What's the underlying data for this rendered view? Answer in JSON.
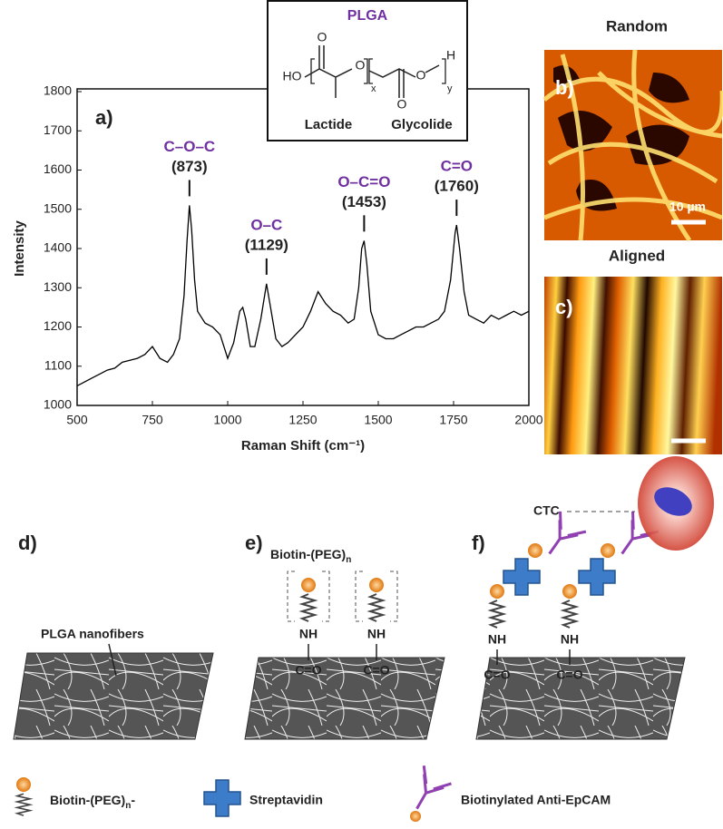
{
  "chart_data": {
    "type": "line",
    "tag": "a)",
    "xlabel": "Raman Shift (cm⁻¹)",
    "ylabel": "Intensity",
    "color": "#000000",
    "annotation_color": "#7030a0",
    "xlim": [
      500,
      2000
    ],
    "xticks": [
      500,
      750,
      1000,
      1250,
      1500,
      1750,
      2000
    ],
    "ylim": [
      1000,
      1800
    ],
    "yticks": [
      1000,
      1100,
      1200,
      1300,
      1400,
      1500,
      1600,
      1700,
      1800
    ],
    "x": [
      500,
      525,
      550,
      575,
      600,
      625,
      650,
      675,
      700,
      725,
      750,
      775,
      800,
      820,
      840,
      855,
      865,
      873,
      880,
      890,
      900,
      925,
      950,
      975,
      1000,
      1020,
      1040,
      1050,
      1060,
      1075,
      1090,
      1110,
      1129,
      1140,
      1160,
      1180,
      1200,
      1225,
      1250,
      1275,
      1300,
      1325,
      1350,
      1375,
      1400,
      1420,
      1435,
      1445,
      1453,
      1462,
      1475,
      1500,
      1525,
      1550,
      1575,
      1600,
      1625,
      1650,
      1675,
      1700,
      1720,
      1740,
      1755,
      1760,
      1770,
      1785,
      1800,
      1825,
      1850,
      1875,
      1900,
      1925,
      1950,
      1975,
      2000
    ],
    "values": [
      1050,
      1060,
      1070,
      1080,
      1090,
      1095,
      1110,
      1115,
      1120,
      1130,
      1150,
      1120,
      1110,
      1130,
      1170,
      1280,
      1420,
      1510,
      1450,
      1320,
      1240,
      1210,
      1200,
      1180,
      1120,
      1160,
      1240,
      1250,
      1220,
      1150,
      1150,
      1220,
      1310,
      1260,
      1170,
      1150,
      1160,
      1180,
      1200,
      1240,
      1290,
      1260,
      1240,
      1230,
      1210,
      1220,
      1300,
      1400,
      1420,
      1360,
      1240,
      1180,
      1170,
      1170,
      1180,
      1190,
      1200,
      1200,
      1210,
      1220,
      1240,
      1320,
      1440,
      1460,
      1400,
      1290,
      1230,
      1220,
      1210,
      1230,
      1220,
      1230,
      1240,
      1230,
      1240
    ],
    "annotations": [
      {
        "group": "C–O–C",
        "x": 873,
        "label": "(873)"
      },
      {
        "group": "O–C",
        "x": 1129,
        "label": "(1129)"
      },
      {
        "group": "O–C=O",
        "x": 1453,
        "label": "(1453)"
      },
      {
        "group": "C=O",
        "x": 1760,
        "label": "(1760)"
      }
    ]
  },
  "structure": {
    "title": "PLGA",
    "atoms": [
      "HO",
      "O",
      "O",
      "O",
      "O",
      "H"
    ],
    "indices": [
      "x",
      "y"
    ],
    "units": [
      "Lactide",
      "Glycolide"
    ]
  },
  "images": {
    "random": {
      "title": "Random",
      "tag": "b)",
      "scale": "10 µm"
    },
    "aligned": {
      "title": "Aligned",
      "tag": "c)"
    }
  },
  "scheme": {
    "d": {
      "tag": "d)",
      "label": "PLGA nanofibers"
    },
    "e": {
      "tag": "e)",
      "label": "Biotin-(PEG)",
      "label_sub": "n",
      "groups": [
        "NH",
        "C=O",
        "NH",
        "C=O"
      ]
    },
    "f": {
      "tag": "f)",
      "cell": "CTC",
      "groups": [
        "NH",
        "C=O",
        "NH",
        "C=O"
      ]
    }
  },
  "legend": {
    "biotin": "Biotin-(PEG)",
    "biotin_sub": "n",
    "biotin_suffix": "-",
    "streptavidin": "Streptavidin",
    "antibody": "Biotinylated Anti-EpCAM"
  }
}
